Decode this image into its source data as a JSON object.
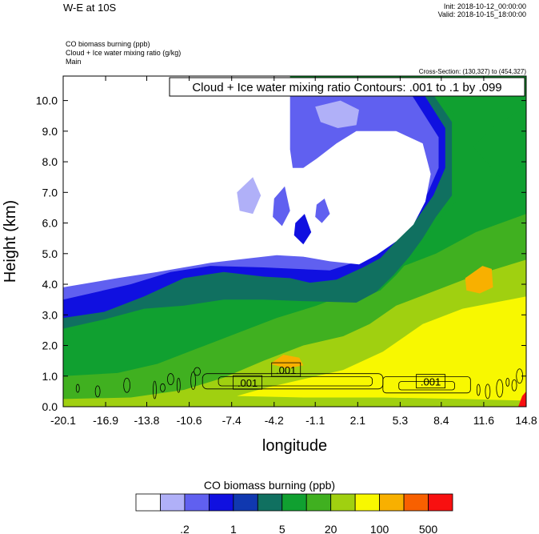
{
  "header": {
    "title": "W-E at 10S",
    "init": "Init: 2018-10-12_00:00:00",
    "valid": "Valid: 2018-10-15_18:00:00",
    "fields": [
      "CO biomass burning   (ppb)",
      "Cloud + Ice water mixing ratio   (g/kg)",
      "Main"
    ],
    "cross_section": "Cross-Section: (130,327) to (454,327)"
  },
  "chart_data": {
    "type": "heatmap",
    "title": "",
    "contour_label": "Cloud + Ice water mixing ratio Contours: .001 to .1 by .099",
    "xlabel": "longitude",
    "ylabel": "Height (km)",
    "xlim": [
      -20.1,
      14.8
    ],
    "ylim": [
      0.0,
      10.8
    ],
    "x_ticks": [
      "-20.1",
      "-16.9",
      "-13.8",
      "-10.6",
      "-7.4",
      "-4.2",
      "-1.1",
      "2.1",
      "5.3",
      "8.4",
      "11.6",
      "14.8"
    ],
    "y_ticks": [
      "0.0",
      "1.0",
      "2.0",
      "3.0",
      "4.0",
      "5.0",
      "6.0",
      "7.0",
      "8.0",
      "9.0",
      "10.0"
    ],
    "contour_labels": [
      {
        "text": ".001",
        "x": -6.2,
        "y": 0.78
      },
      {
        "text": ".001",
        "x": -3.3,
        "y": 1.2
      },
      {
        "text": ".001",
        "x": 7.6,
        "y": 0.82
      }
    ],
    "colorbar": {
      "title": "CO biomass burning  (ppb)",
      "colors": [
        "#ffffff",
        "#b0b0f8",
        "#6060f0",
        "#1010e0",
        "#1038b0",
        "#107060",
        "#10a030",
        "#40b020",
        "#a0d010",
        "#f8f800",
        "#f8b000",
        "#f86000",
        "#f81010"
      ],
      "labels": [
        ".2",
        "1",
        "5",
        "20",
        "100",
        "500"
      ]
    },
    "fields": {
      "background": "#10a030",
      "regions": [
        {
          "level": 7,
          "points": [
            [
              -20.1,
              1.0
            ],
            [
              -16,
              1.1
            ],
            [
              -13,
              1.4
            ],
            [
              -10,
              1.9
            ],
            [
              -7,
              2.4
            ],
            [
              -4,
              2.9
            ],
            [
              -1,
              3.3
            ],
            [
              2,
              3.8
            ],
            [
              5,
              4.5
            ],
            [
              8,
              5.0
            ],
            [
              11,
              5.7
            ],
            [
              14.8,
              6.3
            ],
            [
              14.8,
              0
            ],
            [
              -20.1,
              0
            ]
          ]
        },
        {
          "level": 8,
          "points": [
            [
              -20.1,
              0.25
            ],
            [
              -15,
              0.3
            ],
            [
              -11,
              0.55
            ],
            [
              -8,
              0.95
            ],
            [
              -5,
              1.5
            ],
            [
              -2,
              2.0
            ],
            [
              1,
              2.3
            ],
            [
              3,
              2.7
            ],
            [
              5,
              3.3
            ],
            [
              8,
              3.8
            ],
            [
              11,
              4.3
            ],
            [
              14.8,
              4.8
            ],
            [
              14.8,
              0
            ],
            [
              -20.1,
              0
            ]
          ]
        },
        {
          "level": 9,
          "points": [
            [
              -7,
              0.35
            ],
            [
              -5,
              0.6
            ],
            [
              -2,
              0.9
            ],
            [
              1,
              1.2
            ],
            [
              4,
              1.8
            ],
            [
              7,
              2.7
            ],
            [
              10,
              3.2
            ],
            [
              14.8,
              3.6
            ],
            [
              14.8,
              0.2
            ],
            [
              10,
              0.25
            ],
            [
              4,
              0.3
            ],
            [
              -2,
              0.3
            ]
          ]
        },
        {
          "level": 10,
          "points": [
            [
              -4.5,
              1.4
            ],
            [
              -3.5,
              1.7
            ],
            [
              -2.3,
              1.6
            ],
            [
              -2,
              1.35
            ],
            [
              -3.2,
              1.25
            ]
          ]
        },
        {
          "level": 10,
          "points": [
            [
              10.2,
              4.2
            ],
            [
              11.5,
              4.6
            ],
            [
              12.2,
              4.5
            ],
            [
              12.3,
              3.9
            ],
            [
              11.3,
              3.7
            ],
            [
              10.3,
              3.8
            ]
          ]
        },
        {
          "level": 6,
          "points": [
            [
              -20.1,
              2.3
            ],
            [
              -18,
              2.5
            ],
            [
              -15,
              3.0
            ],
            [
              -13,
              3.4
            ],
            [
              -10,
              3.5
            ],
            [
              -7,
              3.6
            ],
            [
              -4,
              3.6
            ],
            [
              -1,
              3.5
            ],
            [
              2,
              3.5
            ],
            [
              3.8,
              3.8
            ],
            [
              5,
              4.3
            ],
            [
              6,
              4.8
            ],
            [
              7,
              5.3
            ],
            [
              8,
              6.0
            ],
            [
              9.5,
              6.7
            ],
            [
              9.5,
              9.5
            ],
            [
              7,
              10.7
            ],
            [
              4,
              10.7
            ],
            [
              1,
              10.7
            ],
            [
              -3,
              10.7
            ],
            [
              -3,
              7.0
            ],
            [
              -10,
              7.0
            ],
            [
              -12,
              6.0
            ],
            [
              -15,
              5.0
            ],
            [
              -18,
              4.5
            ],
            [
              -20.1,
              4.5
            ]
          ]
        },
        {
          "level": 6,
          "points": [
            [
              10.8,
              8.5
            ],
            [
              12.5,
              9.2
            ],
            [
              14.8,
              9.8
            ],
            [
              14.8,
              8.0
            ],
            [
              12.8,
              7.5
            ]
          ]
        },
        {
          "level": 5,
          "points": [
            [
              -20.1,
              2.55
            ],
            [
              -17,
              2.85
            ],
            [
              -14,
              3.2
            ],
            [
              -11,
              3.3
            ],
            [
              -8,
              3.5
            ],
            [
              -5,
              3.5
            ],
            [
              -2,
              3.45
            ],
            [
              2,
              3.4
            ],
            [
              3.5,
              3.75
            ],
            [
              4.8,
              4.3
            ],
            [
              6,
              4.9
            ],
            [
              7,
              5.5
            ],
            [
              8,
              6.2
            ],
            [
              9.2,
              6.9
            ],
            [
              9.2,
              9.3
            ],
            [
              7,
              10.7
            ],
            [
              -3,
              10.7
            ],
            [
              -3,
              7.2
            ],
            [
              -10,
              7.2
            ],
            [
              -20.1,
              5.0
            ]
          ]
        },
        {
          "level": 6,
          "points": [
            [
              -0.5,
              9.4
            ],
            [
              0.6,
              9.2
            ],
            [
              0.7,
              8.3
            ],
            [
              -0.2,
              7.8
            ],
            [
              -1,
              8.2
            ],
            [
              -1.3,
              8.9
            ]
          ]
        },
        {
          "level": 6,
          "points": [
            [
              3.2,
              8.6
            ],
            [
              4.6,
              9.1
            ],
            [
              5.8,
              8.7
            ],
            [
              5.5,
              7.9
            ],
            [
              4.1,
              7.6
            ],
            [
              3.0,
              8.0
            ]
          ]
        },
        {
          "level": 3,
          "points": [
            [
              -20.1,
              2.9
            ],
            [
              -17,
              3.1
            ],
            [
              -14,
              3.6
            ],
            [
              -11,
              4.2
            ],
            [
              -8,
              4.4
            ],
            [
              -5,
              4.25
            ],
            [
              -3,
              4.2
            ],
            [
              -1.5,
              4.05
            ],
            [
              0.5,
              4.15
            ],
            [
              2.5,
              4.55
            ],
            [
              3.8,
              4.85
            ],
            [
              5.2,
              5.5
            ],
            [
              6.5,
              6.1
            ],
            [
              7.8,
              6.9
            ],
            [
              8.7,
              7.8
            ],
            [
              8.7,
              9.1
            ],
            [
              6.5,
              10.6
            ],
            [
              -3,
              10.7
            ],
            [
              -3.5,
              7.4
            ],
            [
              -10,
              7.4
            ],
            [
              -20.1,
              5.4
            ]
          ]
        },
        {
          "level": 2,
          "points": [
            [
              -20.1,
              3.5
            ],
            [
              -15,
              4.0
            ],
            [
              -12,
              4.4
            ],
            [
              -9,
              4.6
            ],
            [
              -5,
              4.55
            ],
            [
              -2.5,
              4.5
            ],
            [
              0,
              4.45
            ],
            [
              2.5,
              4.8
            ],
            [
              4.2,
              5.3
            ],
            [
              5.5,
              5.8
            ],
            [
              6.5,
              6.3
            ],
            [
              7.4,
              7.0
            ],
            [
              8.2,
              7.8
            ],
            [
              8.2,
              8.8
            ],
            [
              6,
              10.3
            ],
            [
              -3,
              10.5
            ],
            [
              -3.5,
              7.6
            ],
            [
              -20.1,
              7.6
            ]
          ]
        },
        {
          "level": 1,
          "points": [
            [
              -1.1,
              9.8
            ],
            [
              0.8,
              10.0
            ],
            [
              2.2,
              9.7
            ],
            [
              2.0,
              9.2
            ],
            [
              0.6,
              9.1
            ],
            [
              -0.7,
              9.3
            ]
          ]
        },
        {
          "level": 0,
          "points": [
            [
              -20.1,
              3.9
            ],
            [
              -16,
              4.2
            ],
            [
              -13,
              4.4
            ],
            [
              -11,
              4.55
            ],
            [
              -9,
              4.7
            ],
            [
              -6,
              4.85
            ],
            [
              -4,
              4.95
            ],
            [
              -2,
              4.9
            ],
            [
              0,
              4.75
            ],
            [
              2.2,
              4.65
            ],
            [
              3.5,
              4.95
            ],
            [
              5.0,
              5.4
            ],
            [
              6.3,
              5.95
            ],
            [
              7.2,
              6.7
            ],
            [
              7.6,
              7.6
            ],
            [
              7.0,
              8.6
            ],
            [
              5,
              9.0
            ],
            [
              2,
              9.0
            ],
            [
              0.5,
              8.6
            ],
            [
              -1,
              8.1
            ],
            [
              -2,
              7.8
            ],
            [
              -2.8,
              7.8
            ],
            [
              -3,
              8.4
            ],
            [
              -3,
              10.8
            ],
            [
              -20.1,
              10.8
            ]
          ]
        },
        {
          "level": 1,
          "points": [
            [
              -7,
              7.0
            ],
            [
              -5.8,
              7.5
            ],
            [
              -5.2,
              6.9
            ],
            [
              -5.8,
              6.3
            ],
            [
              -6.8,
              6.4
            ]
          ]
        },
        {
          "level": 2,
          "points": [
            [
              -4.2,
              6.8
            ],
            [
              -3.4,
              7.2
            ],
            [
              -3.0,
              6.4
            ],
            [
              -3.6,
              5.9
            ],
            [
              -4.3,
              6.2
            ]
          ]
        },
        {
          "level": 3,
          "points": [
            [
              -2.6,
              6.0
            ],
            [
              -1.9,
              6.3
            ],
            [
              -1.4,
              5.7
            ],
            [
              -2.0,
              5.3
            ],
            [
              -2.7,
              5.6
            ]
          ]
        },
        {
          "level": 2,
          "points": [
            [
              -1.0,
              6.6
            ],
            [
              -0.4,
              6.8
            ],
            [
              0.0,
              6.3
            ],
            [
              -0.6,
              6.0
            ],
            [
              -1.1,
              6.2
            ]
          ]
        },
        {
          "level": 12,
          "points": [
            [
              14.2,
              0
            ],
            [
              14.8,
              0
            ],
            [
              14.8,
              0.5
            ],
            [
              14.5,
              0.35
            ]
          ]
        }
      ]
    }
  }
}
